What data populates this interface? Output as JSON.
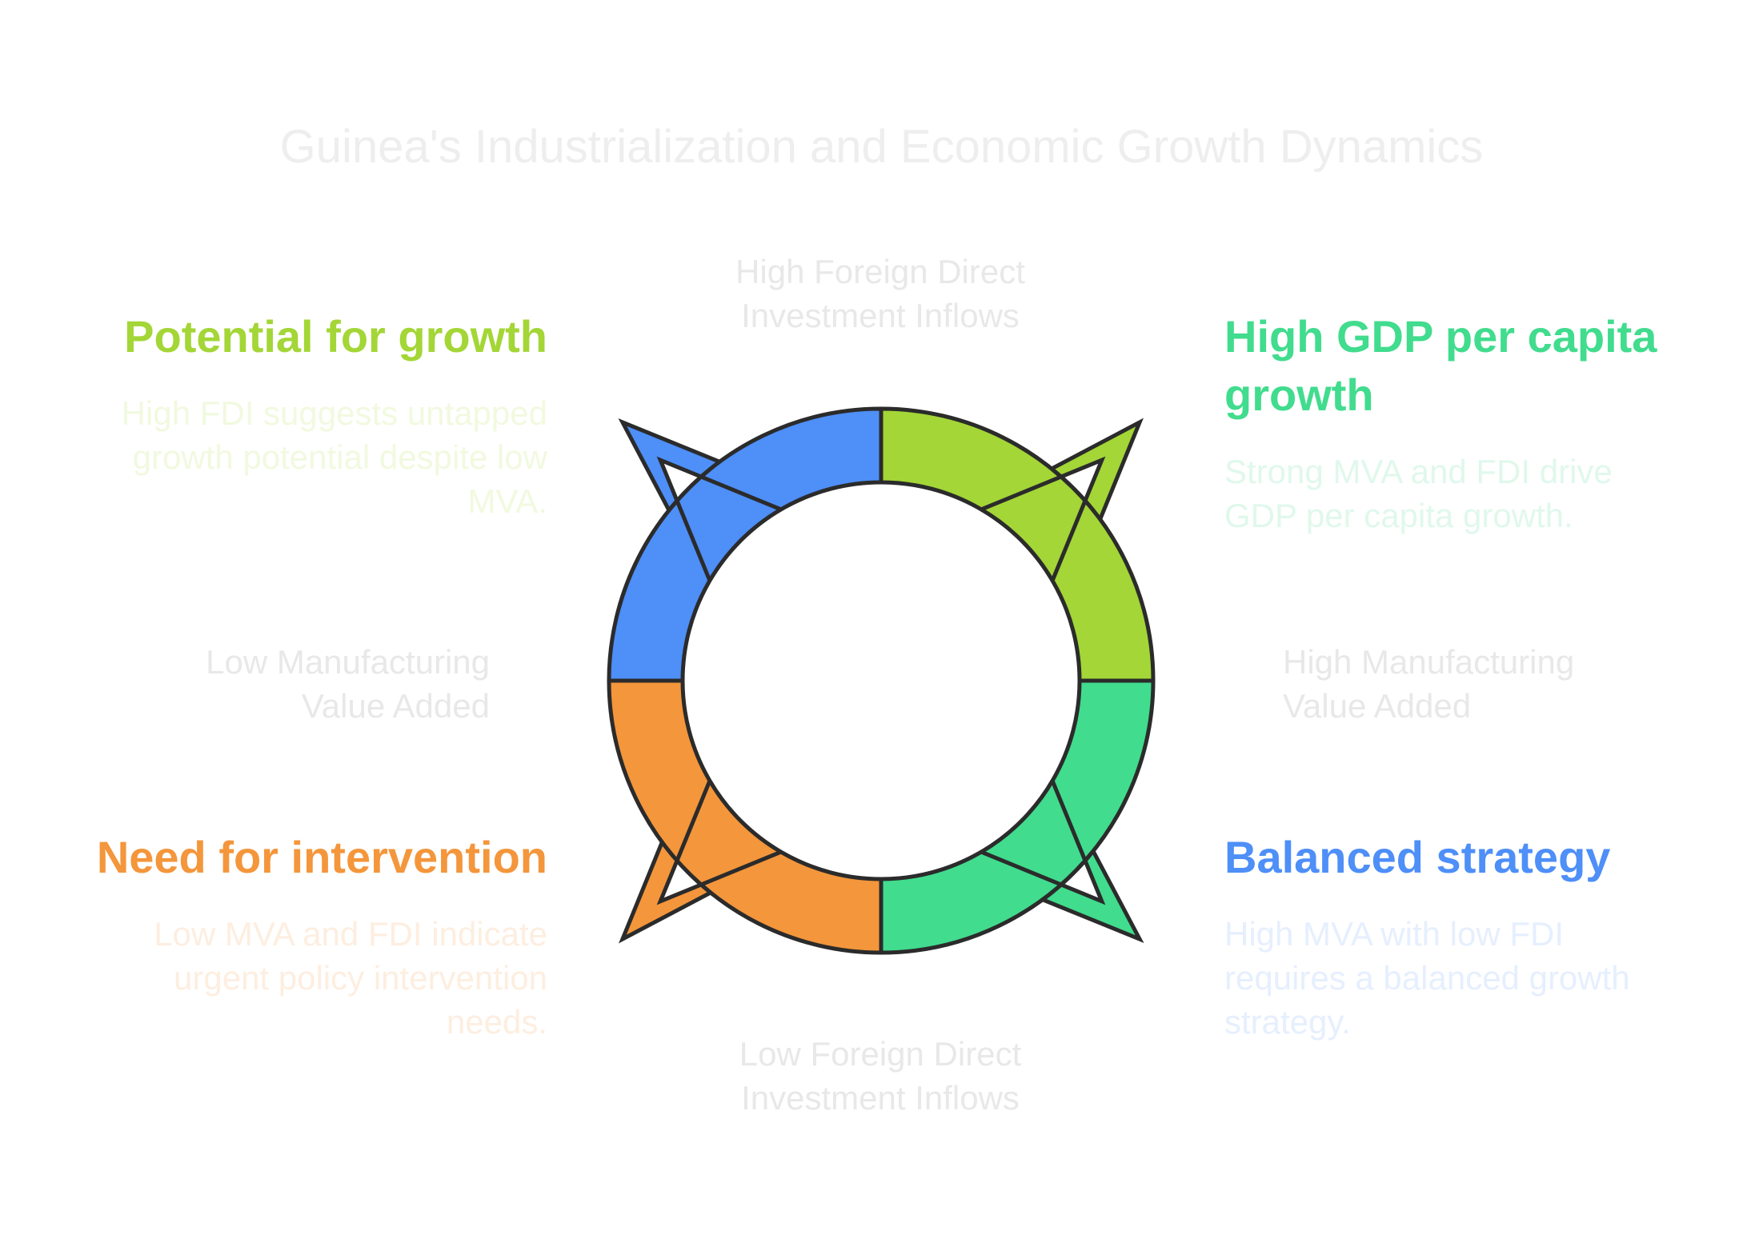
{
  "title": "Guinea's Industrialization and Economic Growth Dynamics",
  "axes": {
    "top": [
      "High Foreign Direct",
      "Investment Inflows"
    ],
    "bottom": [
      "Low Foreign Direct",
      "Investment Inflows"
    ],
    "left": [
      "Low Manufacturing",
      "Value Added"
    ],
    "right": [
      "High Manufacturing",
      "Value Added"
    ]
  },
  "quadrants": {
    "top_left": {
      "heading": "Potential for growth",
      "desc": [
        "High FDI suggests untapped",
        "growth potential despite low",
        "MVA."
      ],
      "heading_color": "#a3d636",
      "desc_color": "#f1f9df"
    },
    "top_right": {
      "heading": [
        "High GDP per capita",
        "growth"
      ],
      "desc": [
        "Strong MVA and FDI drive",
        "GDP per capita growth."
      ],
      "heading_color": "#41dc8e",
      "desc_color": "#e0f8ec"
    },
    "bottom_left": {
      "heading": "Need for intervention",
      "desc": [
        "Low MVA and FDI indicate",
        "urgent policy intervention",
        "needs."
      ],
      "heading_color": "#f4963b",
      "desc_color": "#fdeee0"
    },
    "bottom_right": {
      "heading": "Balanced strategy",
      "desc": [
        "High MVA with low FDI",
        "requires a balanced growth",
        "strategy."
      ],
      "heading_color": "#4e8ff8",
      "desc_color": "#e6effe"
    }
  },
  "cycle_colors": {
    "top_left": "#4e8ff8",
    "top_right": "#a3d636",
    "bottom_right": "#41dc8e",
    "bottom_left": "#f4963b",
    "outline": "#2b2b2b"
  }
}
